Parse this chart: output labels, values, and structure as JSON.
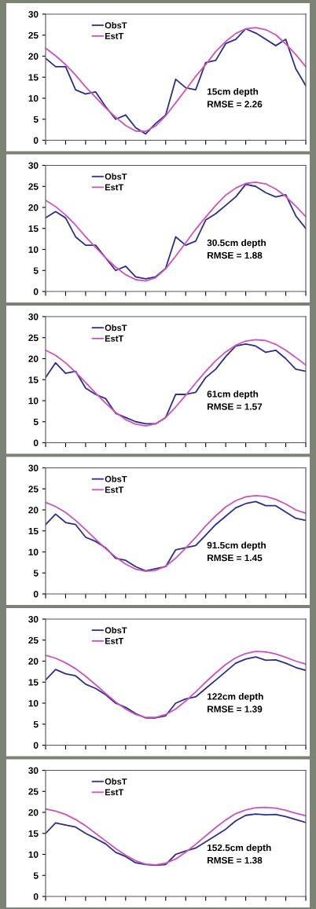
{
  "chart_data": [
    {
      "type": "line",
      "categories": [
        null,
        null,
        null,
        null,
        null,
        null,
        null,
        null,
        null,
        null,
        null,
        null,
        null,
        null,
        null,
        null,
        null,
        null,
        null,
        null,
        null,
        null,
        null,
        null,
        null,
        null,
        null
      ],
      "ylim": [
        0,
        30
      ],
      "yticks": [
        0,
        5,
        10,
        15,
        20,
        25,
        30
      ],
      "tick_labels": "y",
      "legend": "top left",
      "annotations": [
        "15cm depth",
        "RMSE = 2.26"
      ],
      "series": [
        {
          "name": "ObsT",
          "color": "#2e2e8a",
          "values": [
            19.5,
            17.5,
            17.5,
            12,
            11,
            11.5,
            8,
            5,
            6,
            3,
            1.5,
            4,
            6,
            14.5,
            12.5,
            12,
            18.5,
            19,
            23,
            24,
            26.5,
            25.5,
            24,
            22.5,
            24,
            17,
            13
          ]
        },
        {
          "name": "EstT",
          "color": "#cc55bb",
          "values": [
            21.9,
            20.1,
            18.0,
            15.5,
            12.7,
            10.2,
            7.7,
            5.5,
            3.5,
            2.2,
            2.1,
            3.4,
            5.8,
            8.9,
            12.0,
            15.2,
            18.0,
            21.1,
            23.5,
            25.4,
            26.5,
            26.8,
            26.3,
            25.1,
            22.9,
            20.4,
            17.5
          ]
        }
      ]
    },
    {
      "type": "line",
      "categories": [
        null,
        null,
        null,
        null,
        null,
        null,
        null,
        null,
        null,
        null,
        null,
        null,
        null,
        null,
        null,
        null,
        null,
        null,
        null,
        null,
        null,
        null,
        null,
        null,
        null,
        null,
        null
      ],
      "ylim": [
        0,
        30
      ],
      "yticks": [
        0,
        5,
        10,
        15,
        20,
        25,
        30
      ],
      "tick_labels": "y",
      "legend": "top left",
      "annotations": [
        "30.5cm depth",
        "RMSE = 1.88"
      ],
      "series": [
        {
          "name": "ObsT",
          "color": "#2e2e8a",
          "values": [
            17.5,
            19,
            17.5,
            13,
            11,
            11,
            8,
            5,
            6,
            3.5,
            3,
            3.5,
            5.5,
            13,
            11,
            12,
            17,
            18.5,
            20.5,
            22.5,
            25.5,
            25,
            23.5,
            22.5,
            23,
            18,
            15
          ]
        },
        {
          "name": "EstT",
          "color": "#cc55bb",
          "values": [
            21.7,
            20.2,
            18.2,
            15.8,
            13.0,
            10.5,
            8.0,
            5.8,
            4.0,
            2.8,
            2.5,
            3.3,
            5.4,
            8.4,
            11.6,
            14.8,
            17.7,
            20.5,
            22.9,
            24.6,
            25.7,
            26.0,
            25.6,
            24.4,
            22.6,
            20.3,
            17.8
          ]
        }
      ]
    },
    {
      "type": "line",
      "categories": [
        null,
        null,
        null,
        null,
        null,
        null,
        null,
        null,
        null,
        null,
        null,
        null,
        null,
        null,
        null,
        null,
        null,
        null,
        null,
        null,
        null,
        null,
        null,
        null,
        null,
        null,
        null
      ],
      "ylim": [
        0,
        30
      ],
      "yticks": [
        0,
        5,
        10,
        15,
        20,
        25,
        30
      ],
      "tick_labels": "y",
      "legend": "top left",
      "annotations": [
        "61cm depth",
        "RMSE = 1.57"
      ],
      "series": [
        {
          "name": "ObsT",
          "color": "#2e2e8a",
          "values": [
            15.5,
            19,
            16.5,
            17,
            13,
            11.5,
            10.5,
            7,
            6,
            5,
            4.5,
            4.5,
            6,
            11.5,
            11.5,
            12,
            15.5,
            17.5,
            20.5,
            23,
            23.5,
            23,
            21.5,
            22,
            20,
            17.5,
            17
          ]
        },
        {
          "name": "EstT",
          "color": "#cc55bb",
          "values": [
            22.0,
            20.8,
            19.0,
            16.8,
            14.3,
            11.8,
            9.4,
            7.2,
            5.5,
            4.4,
            4.0,
            4.5,
            6.0,
            8.5,
            11.3,
            14.2,
            17.0,
            19.5,
            21.6,
            23.2,
            24.2,
            24.5,
            24.3,
            23.4,
            22.0,
            20.3,
            18.5
          ]
        }
      ]
    },
    {
      "type": "line",
      "categories": [
        null,
        null,
        null,
        null,
        null,
        null,
        null,
        null,
        null,
        null,
        null,
        null,
        null,
        null,
        null,
        null,
        null,
        null,
        null,
        null,
        null,
        null,
        null,
        null,
        null,
        null,
        null
      ],
      "ylim": [
        0,
        30
      ],
      "yticks": [
        0,
        5,
        10,
        15,
        20,
        25,
        30
      ],
      "tick_labels": "y",
      "legend": "top left",
      "annotations": [
        "91.5cm depth",
        "RMSE = 1.45"
      ],
      "series": [
        {
          "name": "ObsT",
          "color": "#2e2e8a",
          "values": [
            16.5,
            19,
            17,
            16.5,
            13.5,
            12.5,
            11,
            8.5,
            8,
            6.5,
            5.5,
            6,
            6.5,
            10.5,
            11,
            11.5,
            14,
            16.5,
            18.5,
            20.5,
            21.5,
            22,
            21,
            21,
            19.5,
            18,
            17.5
          ]
        },
        {
          "name": "EstT",
          "color": "#cc55bb",
          "values": [
            21.8,
            20.8,
            19.4,
            17.5,
            15.3,
            13.0,
            10.8,
            8.8,
            7.1,
            5.9,
            5.4,
            5.6,
            6.6,
            8.5,
            10.9,
            13.5,
            16.2,
            18.6,
            20.7,
            22.2,
            23.1,
            23.4,
            23.2,
            22.5,
            21.4,
            20.0,
            19.2
          ]
        }
      ]
    },
    {
      "type": "line",
      "categories": [
        null,
        null,
        null,
        null,
        null,
        null,
        null,
        null,
        null,
        null,
        null,
        null,
        null,
        null,
        null,
        null,
        null,
        null,
        null,
        null,
        null,
        null,
        null,
        null,
        null,
        null,
        null
      ],
      "ylim": [
        0,
        30
      ],
      "yticks": [
        0,
        5,
        10,
        15,
        20,
        25,
        30
      ],
      "tick_labels": "y",
      "legend": "top left",
      "annotations": [
        "122cm depth",
        "RMSE = 1.39"
      ],
      "series": [
        {
          "name": "ObsT",
          "color": "#2e2e8a",
          "values": [
            15.5,
            18,
            17,
            16.5,
            14.5,
            13.5,
            12,
            10,
            9,
            7.5,
            6.5,
            6.5,
            7,
            10,
            11,
            11.5,
            13.5,
            15.5,
            17.5,
            19.5,
            20.5,
            21,
            20.2,
            20.3,
            19.5,
            18.5,
            17.8
          ]
        },
        {
          "name": "EstT",
          "color": "#cc55bb",
          "values": [
            21.4,
            20.7,
            19.6,
            18.2,
            16.4,
            14.4,
            12.3,
            10.3,
            8.6,
            7.3,
            6.6,
            6.6,
            7.3,
            8.6,
            10.5,
            12.7,
            15.0,
            17.2,
            19.2,
            20.8,
            21.8,
            22.3,
            22.2,
            21.7,
            20.9,
            20.0,
            19.3
          ]
        }
      ]
    },
    {
      "type": "line",
      "categories": [
        null,
        null,
        null,
        null,
        null,
        null,
        null,
        null,
        null,
        null,
        null,
        null,
        null,
        null,
        null,
        null,
        null,
        null,
        null,
        null,
        null,
        null,
        null,
        null,
        null,
        null,
        null
      ],
      "ylim": [
        0,
        30
      ],
      "yticks": [
        0,
        5,
        10,
        15,
        20,
        25,
        30
      ],
      "tick_labels": "y",
      "legend": "top left",
      "annotations": [
        "152.5cm depth",
        "RMSE = 1.38"
      ],
      "series": [
        {
          "name": "ObsT",
          "color": "#2e2e8a",
          "values": [
            15,
            17.5,
            17,
            16.5,
            15,
            13.8,
            12.5,
            10.5,
            9.5,
            8,
            7.6,
            7.4,
            7.6,
            10,
            10.8,
            11.5,
            13,
            14.5,
            16,
            18,
            19.3,
            19.6,
            19.4,
            19.5,
            19,
            18.3,
            17.6
          ]
        },
        {
          "name": "EstT",
          "color": "#cc55bb",
          "values": [
            20.8,
            20.3,
            19.5,
            18.3,
            16.8,
            15.0,
            13.2,
            11.4,
            9.8,
            8.5,
            7.7,
            7.5,
            7.9,
            8.9,
            10.5,
            12.4,
            14.4,
            16.4,
            18.2,
            19.7,
            20.6,
            21.1,
            21.2,
            21.0,
            20.5,
            19.8,
            19.2
          ]
        }
      ]
    }
  ]
}
